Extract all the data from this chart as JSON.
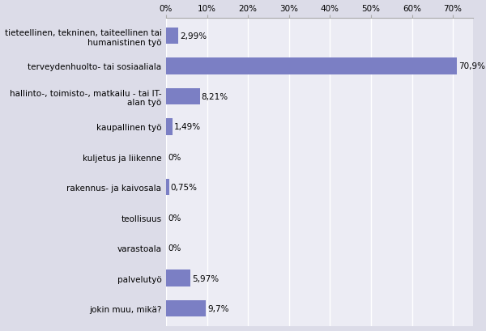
{
  "categories": [
    "jokin muu, mikä?",
    "palvelutyö",
    "varastoala",
    "teollisuus",
    "rakennus- ja kaivosala",
    "kuljetus ja liikenne",
    "kaupallinen työ",
    "hallinto-, toimisto-, matkailu - tai IT-\nalan työ",
    "terveydenhuolto- tai sosiaaliala",
    "tieteellinen, tekninen, taiteellinen tai\nhumanistinen työ"
  ],
  "values": [
    9.7,
    5.97,
    0,
    0,
    0.75,
    0,
    1.49,
    8.21,
    70.9,
    2.99
  ],
  "labels": [
    "9,7%",
    "5,97%",
    "0%",
    "0%",
    "0,75%",
    "0%",
    "1,49%",
    "8,21%",
    "70,9%",
    "2,99%"
  ],
  "bar_color": "#7b7fc4",
  "background_color": "#dcdce8",
  "plot_bg_color": "#ececf4",
  "xlim": [
    0,
    75
  ],
  "xticks": [
    0,
    10,
    20,
    30,
    40,
    50,
    60,
    70
  ],
  "xticklabels": [
    "0%",
    "10%",
    "20%",
    "30%",
    "40%",
    "50%",
    "60%",
    "70%"
  ],
  "label_fontsize": 7.5,
  "tick_fontsize": 7.5,
  "bar_height": 0.55
}
